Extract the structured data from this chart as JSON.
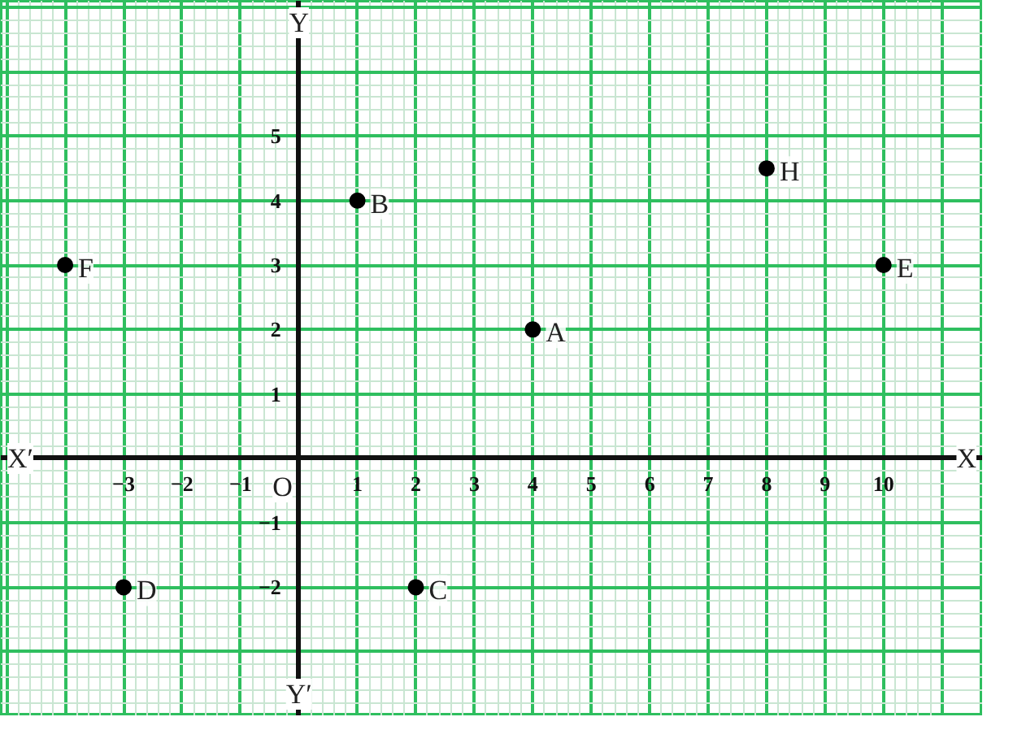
{
  "chart_data": {
    "type": "scatter",
    "marker": "circle",
    "grid": true,
    "xlim": [
      -5.1,
      11.7
    ],
    "ylim": [
      -4.0,
      7.1
    ],
    "xticks": [
      {
        "value": -5,
        "label": null
      },
      {
        "value": -4,
        "label": null
      },
      -3,
      -2,
      -1,
      {
        "value": 0,
        "label": null
      },
      1,
      2,
      3,
      4,
      5,
      6,
      7,
      8,
      9,
      10,
      {
        "value": 11,
        "label": null
      }
    ],
    "yticks": [
      {
        "value": -4,
        "label": null
      },
      {
        "value": -3,
        "label": null
      },
      -2,
      -1,
      {
        "value": 0,
        "label": null
      },
      1,
      2,
      3,
      4,
      5,
      {
        "value": 6,
        "label": null
      },
      {
        "value": 7,
        "label": null
      }
    ],
    "series": [
      {
        "name": "A",
        "color": "#000000",
        "x": [
          4
        ],
        "values": [
          2
        ]
      },
      {
        "name": "B",
        "color": "#000000",
        "x": [
          1
        ],
        "values": [
          4
        ]
      },
      {
        "name": "C",
        "color": "#000000",
        "x": [
          2
        ],
        "values": [
          -2
        ]
      },
      {
        "name": "D",
        "color": "#000000",
        "x": [
          -3
        ],
        "values": [
          -2
        ]
      },
      {
        "name": "E",
        "color": "#000000",
        "x": [
          10
        ],
        "values": [
          3
        ]
      },
      {
        "name": "F",
        "color": "#000000",
        "x": [
          -4
        ],
        "values": [
          3
        ]
      },
      {
        "name": "H",
        "color": "#000000",
        "x": [
          8
        ],
        "values": [
          4.5
        ]
      }
    ],
    "annotations": [
      "X′",
      "X",
      "Y",
      "Y′",
      "O"
    ]
  }
}
